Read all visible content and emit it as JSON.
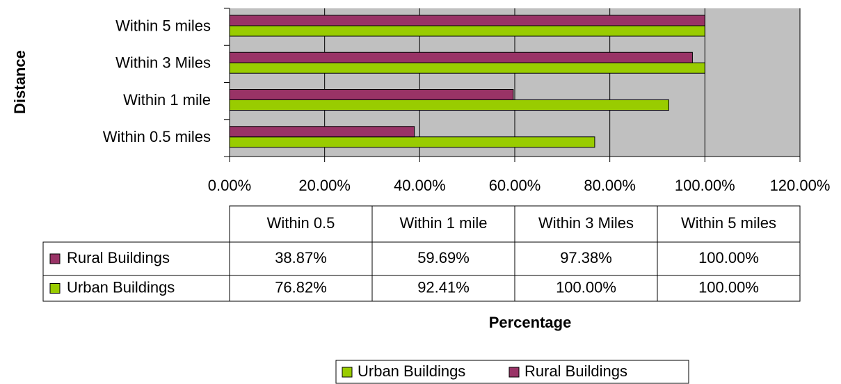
{
  "chart_data": {
    "type": "hbar",
    "ylabel": "Distance",
    "xlabel": "Percentage",
    "categories": [
      "Within 0.5 miles",
      "Within 1 mile",
      "Within 3 Miles",
      "Within 5 miles"
    ],
    "table_categories": [
      "Within 0.5",
      "Within 1 mile",
      "Within 3 Miles",
      "Within 5 miles"
    ],
    "series": [
      {
        "name": "Urban Buildings",
        "color": "#99cc00",
        "values": [
          76.82,
          92.41,
          100,
          100
        ],
        "value_labels": [
          "76.82%",
          "92.41%",
          "100.00%",
          "100.00%"
        ]
      },
      {
        "name": "Rural Buildings",
        "color": "#993366",
        "values": [
          38.87,
          59.69,
          97.38,
          100
        ],
        "value_labels": [
          "38.87%",
          "59.69%",
          "97.38%",
          "100.00%"
        ]
      }
    ],
    "xlim": [
      0,
      120
    ],
    "xticks": [
      {
        "value": 0,
        "label": "0.00%"
      },
      {
        "value": 20,
        "label": "20.00%"
      },
      {
        "value": 40,
        "label": "40.00%"
      },
      {
        "value": 60,
        "label": "60.00%"
      },
      {
        "value": 80,
        "label": "80.00%"
      },
      {
        "value": 100,
        "label": "100.00%"
      },
      {
        "value": 120,
        "label": "120.00%"
      }
    ],
    "grid": true,
    "plot_background": "#c0c0c0",
    "legend": "bottom"
  }
}
